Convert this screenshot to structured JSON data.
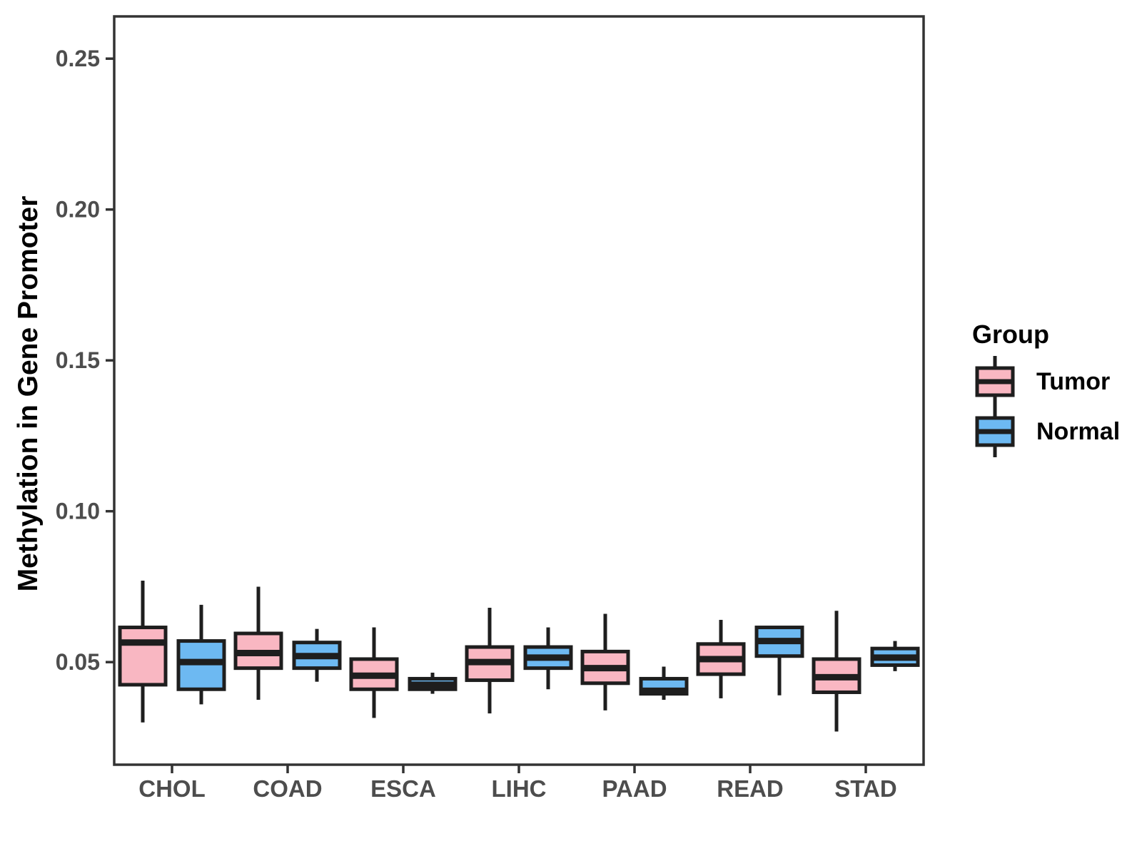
{
  "figure": {
    "ylabel": "Methylation in Gene Promoter",
    "legend": {
      "title": "Group",
      "entries": [
        {
          "label": "Tumor",
          "color": "#F9B7C2"
        },
        {
          "label": "Normal",
          "color": "#6DB9F2"
        }
      ]
    }
  },
  "colors": {
    "tumor_fill": "#F9B7C2",
    "normal_fill": "#6DB9F2",
    "box_stroke": "#1E1E1E",
    "axis_text": "#4D4D4D",
    "axis_line": "#333333",
    "background": "#FFFFFF"
  },
  "chart_data": {
    "type": "boxplot",
    "title": "",
    "xlabel": "",
    "ylabel": "Methylation in Gene Promoter",
    "categories": [
      "CHOL",
      "COAD",
      "ESCA",
      "LIHC",
      "PAAD",
      "READ",
      "STAD"
    ],
    "y_ticks": [
      0.05,
      0.1,
      0.15,
      0.2,
      0.25
    ],
    "ylim": [
      0.016,
      0.264
    ],
    "grid": false,
    "legend_position": "right",
    "legend_title": "Group",
    "series": [
      {
        "name": "Tumor",
        "color": "#F9B7C2",
        "boxes": [
          {
            "low": 0.03,
            "q1": 0.0425,
            "median": 0.0565,
            "q3": 0.0615,
            "high": 0.077
          },
          {
            "low": 0.0375,
            "q1": 0.048,
            "median": 0.053,
            "q3": 0.0595,
            "high": 0.075
          },
          {
            "low": 0.0315,
            "q1": 0.041,
            "median": 0.0455,
            "q3": 0.051,
            "high": 0.0615
          },
          {
            "low": 0.033,
            "q1": 0.044,
            "median": 0.05,
            "q3": 0.055,
            "high": 0.068
          },
          {
            "low": 0.034,
            "q1": 0.043,
            "median": 0.048,
            "q3": 0.0535,
            "high": 0.066
          },
          {
            "low": 0.038,
            "q1": 0.046,
            "median": 0.051,
            "q3": 0.056,
            "high": 0.064
          },
          {
            "low": 0.027,
            "q1": 0.04,
            "median": 0.045,
            "q3": 0.051,
            "high": 0.067
          }
        ]
      },
      {
        "name": "Normal",
        "color": "#6DB9F2",
        "boxes": [
          {
            "low": 0.036,
            "q1": 0.041,
            "median": 0.05,
            "q3": 0.057,
            "high": 0.069
          },
          {
            "low": 0.0435,
            "q1": 0.048,
            "median": 0.052,
            "q3": 0.0565,
            "high": 0.061
          },
          {
            "low": 0.0395,
            "q1": 0.041,
            "median": 0.0425,
            "q3": 0.0445,
            "high": 0.0465
          },
          {
            "low": 0.041,
            "q1": 0.048,
            "median": 0.0515,
            "q3": 0.055,
            "high": 0.0615
          },
          {
            "low": 0.0375,
            "q1": 0.0395,
            "median": 0.0405,
            "q3": 0.0445,
            "high": 0.0485
          },
          {
            "low": 0.039,
            "q1": 0.052,
            "median": 0.057,
            "q3": 0.0615,
            "high": 0.062
          },
          {
            "low": 0.047,
            "q1": 0.049,
            "median": 0.0515,
            "q3": 0.0545,
            "high": 0.057
          }
        ]
      }
    ]
  }
}
